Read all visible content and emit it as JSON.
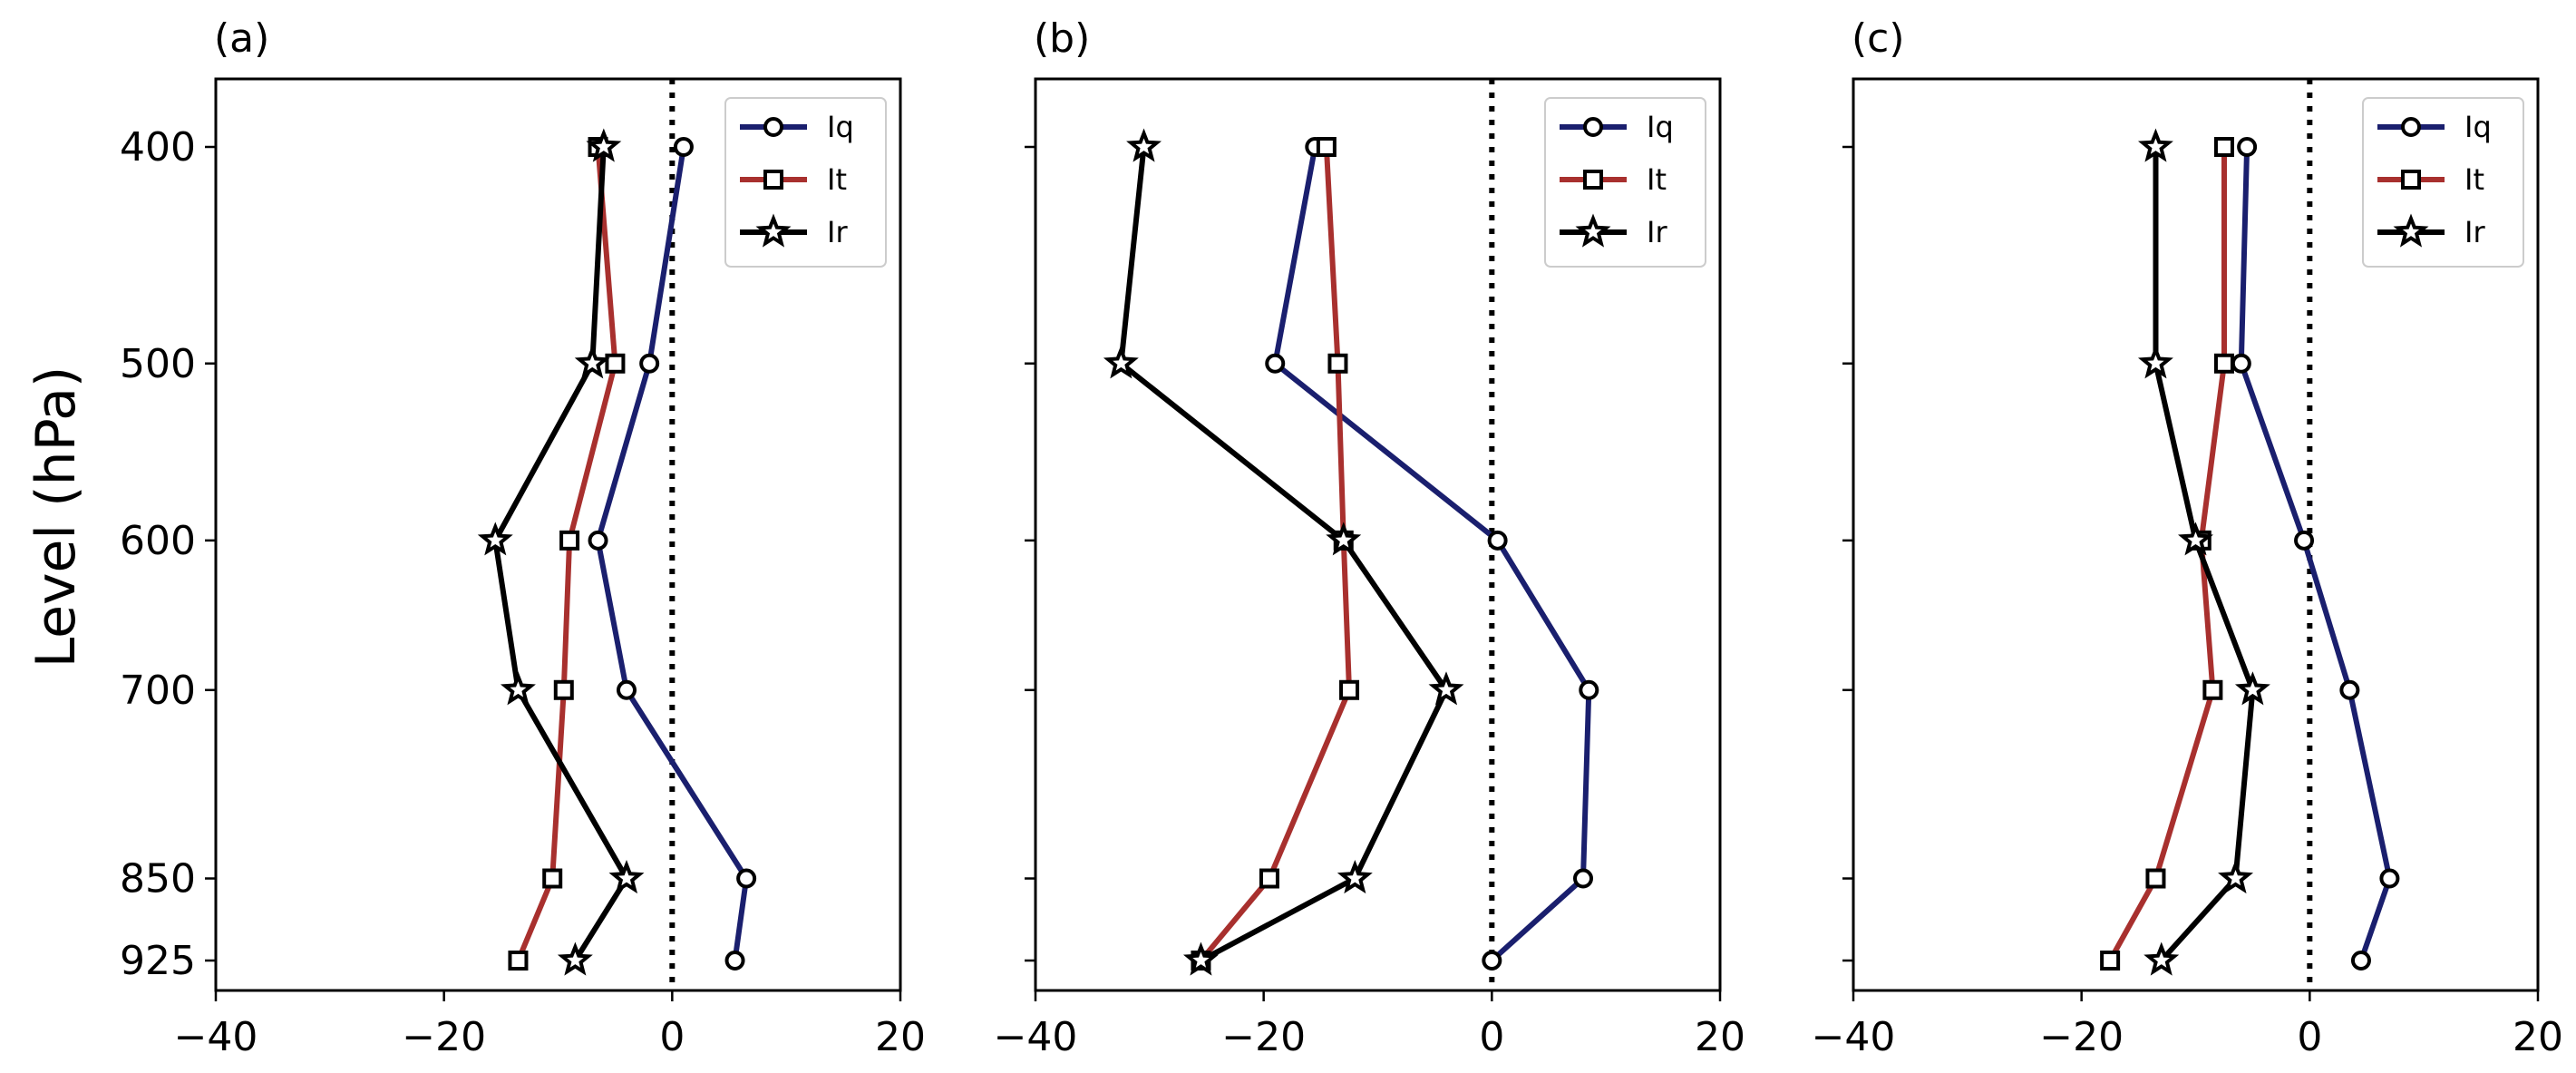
{
  "figure": {
    "ylabel": "Level (hPa)"
  },
  "chart_data": [
    {
      "type": "line",
      "panel_label": "(a)",
      "xlim": [
        -40,
        20
      ],
      "x_ticks": [
        -40,
        -20,
        0,
        20
      ],
      "y_axis": "pressure",
      "y_ticks": [
        400,
        500,
        600,
        700,
        850,
        925
      ],
      "ylim": [
        925,
        375
      ],
      "zero_line": "dotted vertical at x=0",
      "legend_position": "upper right",
      "series": [
        {
          "name": "Iq",
          "color": "#1a1f6e",
          "marker": "circle",
          "points": [
            [
              1,
              400
            ],
            [
              -2,
              500
            ],
            [
              -6.5,
              600
            ],
            [
              -4,
              700
            ],
            [
              6.5,
              850
            ],
            [
              5.5,
              925
            ]
          ]
        },
        {
          "name": "It",
          "color": "#a8302e",
          "marker": "square",
          "points": [
            [
              -6.5,
              400
            ],
            [
              -5,
              500
            ],
            [
              -9,
              600
            ],
            [
              -9.5,
              700
            ],
            [
              -10.5,
              850
            ],
            [
              -13.5,
              925
            ]
          ]
        },
        {
          "name": "Ir",
          "color": "#000000",
          "marker": "star",
          "points": [
            [
              -6,
              400
            ],
            [
              -7,
              500
            ],
            [
              -15.5,
              600
            ],
            [
              -13.5,
              700
            ],
            [
              -4,
              850
            ],
            [
              -8.5,
              925
            ]
          ]
        }
      ]
    },
    {
      "type": "line",
      "panel_label": "(b)",
      "xlim": [
        -40,
        20
      ],
      "x_ticks": [
        -40,
        -20,
        0,
        20
      ],
      "y_axis": "pressure",
      "y_ticks": [
        400,
        500,
        600,
        700,
        850,
        925
      ],
      "ylim": [
        925,
        375
      ],
      "zero_line": "dotted vertical at x=0",
      "legend_position": "upper right",
      "series": [
        {
          "name": "Iq",
          "color": "#1a1f6e",
          "marker": "circle",
          "points": [
            [
              -15.5,
              400
            ],
            [
              -19,
              500
            ],
            [
              0.5,
              600
            ],
            [
              8.5,
              700
            ],
            [
              8,
              850
            ],
            [
              0,
              925
            ]
          ]
        },
        {
          "name": "It",
          "color": "#a8302e",
          "marker": "square",
          "points": [
            [
              -14.5,
              400
            ],
            [
              -13.5,
              500
            ],
            [
              -13,
              600
            ],
            [
              -12.5,
              700
            ],
            [
              -19.5,
              850
            ],
            [
              -25.5,
              925
            ]
          ]
        },
        {
          "name": "Ir",
          "color": "#000000",
          "marker": "star",
          "points": [
            [
              -30.5,
              400
            ],
            [
              -32.5,
              500
            ],
            [
              -13,
              600
            ],
            [
              -4,
              700
            ],
            [
              -12,
              850
            ],
            [
              -25.5,
              925
            ]
          ]
        }
      ]
    },
    {
      "type": "line",
      "panel_label": "(c)",
      "xlim": [
        -40,
        20
      ],
      "x_ticks": [
        -40,
        -20,
        0,
        20
      ],
      "y_axis": "pressure",
      "y_ticks": [
        400,
        500,
        600,
        700,
        850,
        925
      ],
      "ylim": [
        925,
        375
      ],
      "zero_line": "dotted vertical at x=0",
      "legend_position": "upper right",
      "series": [
        {
          "name": "Iq",
          "color": "#1a1f6e",
          "marker": "circle",
          "points": [
            [
              -5.5,
              400
            ],
            [
              -6,
              500
            ],
            [
              -0.5,
              600
            ],
            [
              3.5,
              700
            ],
            [
              7,
              850
            ],
            [
              4.5,
              925
            ]
          ]
        },
        {
          "name": "It",
          "color": "#a8302e",
          "marker": "square",
          "points": [
            [
              -7.5,
              400
            ],
            [
              -7.5,
              500
            ],
            [
              -9.5,
              600
            ],
            [
              -8.5,
              700
            ],
            [
              -13.5,
              850
            ],
            [
              -17.5,
              925
            ]
          ]
        },
        {
          "name": "Ir",
          "color": "#000000",
          "marker": "star",
          "points": [
            [
              -13.5,
              400
            ],
            [
              -13.5,
              500
            ],
            [
              -10,
              600
            ],
            [
              -5,
              700
            ],
            [
              -6.5,
              850
            ],
            [
              -13,
              925
            ]
          ]
        }
      ]
    }
  ]
}
